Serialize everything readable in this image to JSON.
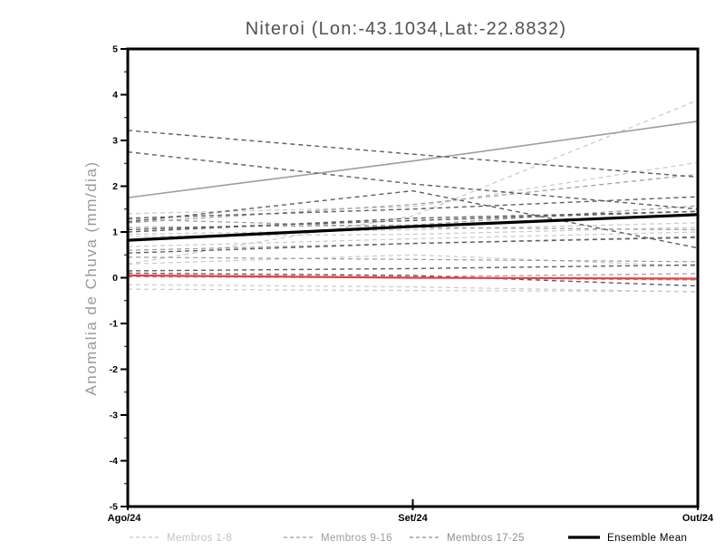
{
  "chart_data": {
    "type": "line",
    "title": "Niteroi (Lon:-43.1034,Lat:-22.8832)",
    "ylabel": "Anomalia de Chuva (mm/dia)",
    "x": [
      "Ago/24",
      "Set/24",
      "Out/24"
    ],
    "ylim": [
      -5,
      5
    ],
    "yticks": [
      5,
      4,
      3,
      2,
      1,
      0,
      -1,
      -2,
      -3,
      -4,
      -5
    ],
    "ytick_minor_step": 0.5,
    "grid": false,
    "legend_position": "bottom",
    "groups": [
      {
        "name": "Membros 1-8",
        "color": "#cbcbcb",
        "line_style": "dashed",
        "members": [
          {
            "values": [
              0.3,
              1.35,
              3.88
            ]
          },
          {
            "values": [
              1.4,
              1.55,
              2.52
            ]
          },
          {
            "values": [
              0.95,
              1.05,
              1.2
            ]
          },
          {
            "values": [
              0.9,
              0.95,
              1.1
            ]
          },
          {
            "values": [
              0.68,
              0.85,
              1.0
            ]
          },
          {
            "values": [
              0.3,
              0.5,
              0.25
            ]
          },
          {
            "values": [
              -0.15,
              -0.2,
              -0.31
            ]
          },
          {
            "values": [
              -0.25,
              -0.28,
              -0.3
            ]
          }
        ]
      },
      {
        "name": "Membros 9-16",
        "color": "#9e9e9e",
        "line_style": "dashed",
        "members": [
          {
            "values": [
              1.75,
              2.55,
              3.42
            ],
            "style": "solid"
          },
          {
            "values": [
              1.2,
              1.6,
              2.26
            ]
          },
          {
            "values": [
              1.1,
              1.15,
              1.57
            ]
          },
          {
            "values": [
              0.45,
              0.4,
              0.35
            ]
          },
          {
            "values": [
              0.05,
              0.02,
              0.09
            ]
          },
          {
            "values": [
              1.28,
              1.1,
              1.05
            ]
          },
          {
            "values": [
              0.6,
              0.75,
              0.9
            ]
          },
          {
            "values": [
              0.02,
              0.0,
              -0.05
            ]
          }
        ]
      },
      {
        "name": "Membros 17-25",
        "color": "#5f5f5f",
        "line_style": "dashed",
        "members": [
          {
            "values": [
              3.22,
              2.7,
              2.2
            ]
          },
          {
            "values": [
              2.75,
              2.05,
              1.5
            ]
          },
          {
            "values": [
              1.3,
              1.5,
              1.77
            ]
          },
          {
            "values": [
              1.22,
              1.9,
              0.65
            ]
          },
          {
            "values": [
              1.05,
              1.25,
              1.45
            ]
          },
          {
            "values": [
              1.0,
              1.3,
              1.45
            ]
          },
          {
            "values": [
              0.54,
              0.75,
              0.88
            ]
          },
          {
            "values": [
              0.15,
              0.2,
              0.28
            ]
          },
          {
            "values": [
              0.1,
              0.05,
              -0.18
            ]
          }
        ]
      }
    ],
    "ensemble_mean": {
      "name": "Ensemble Mean",
      "color": "#000000",
      "values": [
        0.82,
        1.12,
        1.38
      ]
    },
    "reference_line": {
      "color": "#ee3a3f",
      "values": [
        0.05,
        0.0,
        -0.02
      ]
    },
    "legend": [
      {
        "label": "Membros 1-8",
        "color": "#c2c2c2",
        "sample": "dashed"
      },
      {
        "label": "Membros 9-16",
        "color": "#9c9c9c",
        "sample": "dashed"
      },
      {
        "label": "Membros 17-25",
        "color": "#8d8d8d",
        "sample": "dashed"
      },
      {
        "label": "Ensemble Mean",
        "color": "#000000",
        "sample": "solid-thick"
      }
    ]
  },
  "colors": {
    "axis": "#000000",
    "title": "#525252",
    "axis_label": "#9a9a9a",
    "background": "#ffffff"
  }
}
